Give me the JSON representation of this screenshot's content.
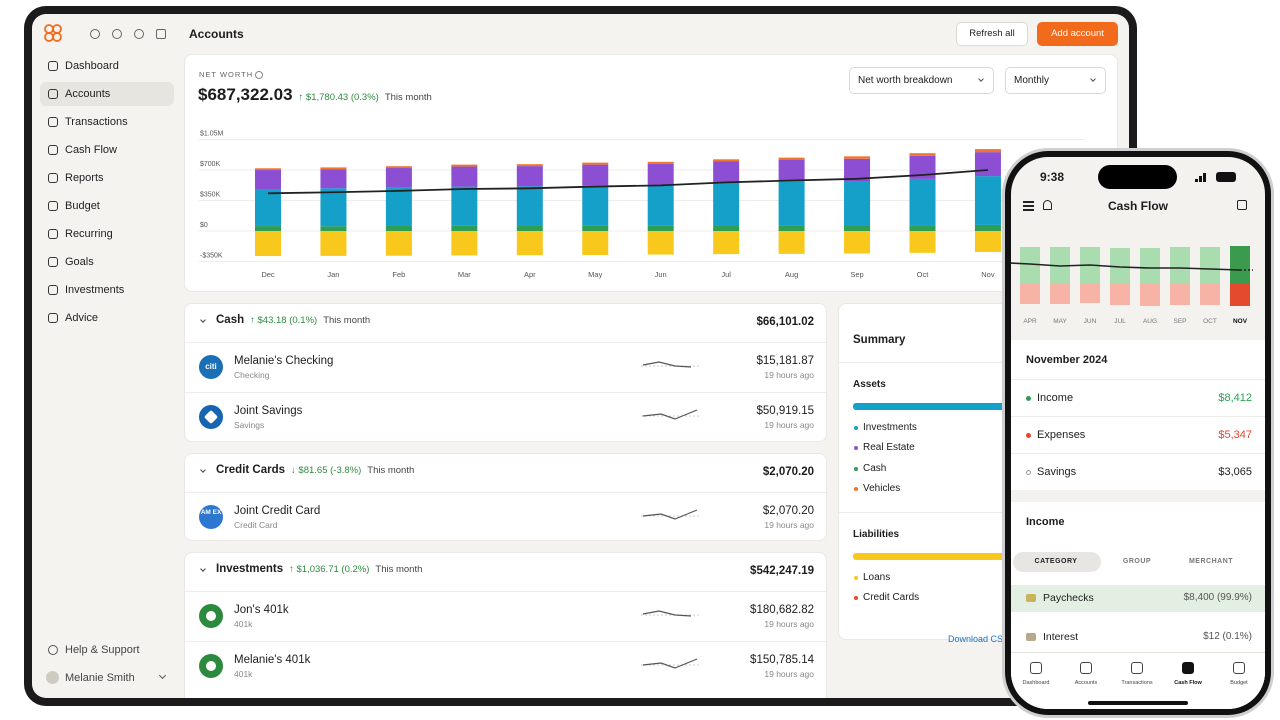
{
  "sidebar": {
    "nav": [
      "Dashboard",
      "Accounts",
      "Transactions",
      "Cash Flow",
      "Reports",
      "Budget",
      "Recurring",
      "Goals",
      "Investments",
      "Advice"
    ],
    "help": "Help & Support",
    "user": "Melanie Smith"
  },
  "header": {
    "title": "Accounts",
    "refresh": "Refresh all",
    "add": "Add account"
  },
  "net_worth": {
    "label": "NET WORTH",
    "value": "$687,322.03",
    "change": "↑ $1,780.43 (0.3%)",
    "period": "This month",
    "breakdown": "Net worth breakdown",
    "interval": "Monthly"
  },
  "chart_data": {
    "type": "bar",
    "stacked": true,
    "grid": true,
    "categories": [
      "Dec",
      "Jan",
      "Feb",
      "Mar",
      "Apr",
      "May",
      "Jun",
      "Jul",
      "Aug",
      "Sep",
      "Oct",
      "Nov"
    ],
    "series": [
      {
        "color": "#2f9e55",
        "values": [
          57000,
          55000,
          58000,
          60000,
          58000,
          62000,
          60000,
          63000,
          65000,
          64000,
          68000,
          70000
        ]
      },
      {
        "color": "#14a0c8",
        "values": [
          425000,
          435000,
          440000,
          450000,
          455000,
          465000,
          470000,
          490000,
          500000,
          510000,
          530000,
          560000
        ]
      },
      {
        "color": "#8c4fd4",
        "values": [
          218000,
          220000,
          225000,
          230000,
          232000,
          235000,
          240000,
          245000,
          250000,
          255000,
          265000,
          275000
        ]
      },
      {
        "color": "#f0742a",
        "values": [
          20000,
          20000,
          21000,
          22000,
          22000,
          23000,
          24000,
          25000,
          27000,
          28000,
          30000,
          35000
        ]
      },
      {
        "color": "#f8c81c",
        "values": [
          -287000,
          -285000,
          -283000,
          -280000,
          -277000,
          -275000,
          -270000,
          -265000,
          -262000,
          -258000,
          -250000,
          -240000
        ]
      }
    ],
    "line": {
      "color": "#222222",
      "values": [
        433000,
        445000,
        461000,
        482000,
        490000,
        510000,
        524000,
        558000,
        580000,
        599000,
        643000,
        700000
      ]
    },
    "ylim": [
      -400000,
      1150000
    ],
    "yticks": [
      {
        "value": -350000,
        "label": "-$350K"
      },
      {
        "value": 0,
        "label": "$0"
      },
      {
        "value": 350000,
        "label": "$350K"
      },
      {
        "value": 700000,
        "label": "$700K"
      },
      {
        "value": 1050000,
        "label": "$1.05M"
      }
    ]
  },
  "accounts": [
    {
      "name": "Cash",
      "change": "↑ $43.18 (0.1%)",
      "period": "This month",
      "total": "$66,101.02",
      "rows": [
        {
          "logo": "citi",
          "name": "Melanie's Checking",
          "type": "Checking",
          "value": "$15,181.87",
          "updated": "19 hours ago"
        },
        {
          "name": "Joint Savings",
          "type": "Savings",
          "value": "$50,919.15",
          "updated": "19 hours ago"
        }
      ]
    },
    {
      "name": "Credit Cards",
      "change": "↓ $81.65 (-3.8%)",
      "period": "This month",
      "total": "$2,070.20",
      "rows": [
        {
          "logo": "AM EX",
          "name": "Joint Credit Card",
          "type": "Credit Card",
          "value": "$2,070.20",
          "updated": "19 hours ago"
        }
      ]
    },
    {
      "name": "Investments",
      "change": "↑ $1,036.71 (0.2%)",
      "period": "This month",
      "total": "$542,247.19",
      "rows": [
        {
          "name": "Jon's 401k",
          "type": "401k",
          "value": "$180,682.82",
          "updated": "19 hours ago"
        },
        {
          "name": "Melanie's 401k",
          "type": "401k",
          "value": "$150,785.14",
          "updated": "19 hours ago"
        }
      ]
    }
  ],
  "summary": {
    "title": "Summary",
    "assets_title": "Assets",
    "assets": [
      {
        "name": "Investments",
        "color": "#14a0c8"
      },
      {
        "name": "Real Estate",
        "color": "#8c4fd4"
      },
      {
        "name": "Cash",
        "color": "#2f9e55"
      },
      {
        "name": "Vehicles",
        "color": "#f0742a"
      }
    ],
    "liabilities_title": "Liabilities",
    "liabilities": [
      {
        "name": "Loans",
        "color": "#f8c81c"
      },
      {
        "name": "Credit Cards",
        "color": "#e8452c"
      }
    ],
    "download": "Download CSV"
  },
  "phone": {
    "time": "9:38",
    "title": "Cash Flow",
    "months": [
      "APR",
      "MAY",
      "JUN",
      "JUL",
      "AUG",
      "SEP",
      "OCT",
      "NOV"
    ],
    "month_title": "November 2024",
    "totals": [
      {
        "label": "Income",
        "value": "$8,412",
        "color": "#2f9e55"
      },
      {
        "label": "Expenses",
        "value": "$5,347",
        "color": "#e8452c"
      },
      {
        "label": "Savings",
        "value": "$3,065",
        "color": "#222222"
      }
    ],
    "income_title": "Income",
    "tabs": [
      "CATEGORY",
      "GROUP",
      "MERCHANT"
    ],
    "income_rows": [
      {
        "label": "Paychecks",
        "value": "$8,400 (99.9%)"
      },
      {
        "label": "Interest",
        "value": "$12 (0.1%)"
      }
    ],
    "nav": [
      "Dashboard",
      "Accounts",
      "Transactions",
      "Cash Flow",
      "Budget"
    ]
  }
}
